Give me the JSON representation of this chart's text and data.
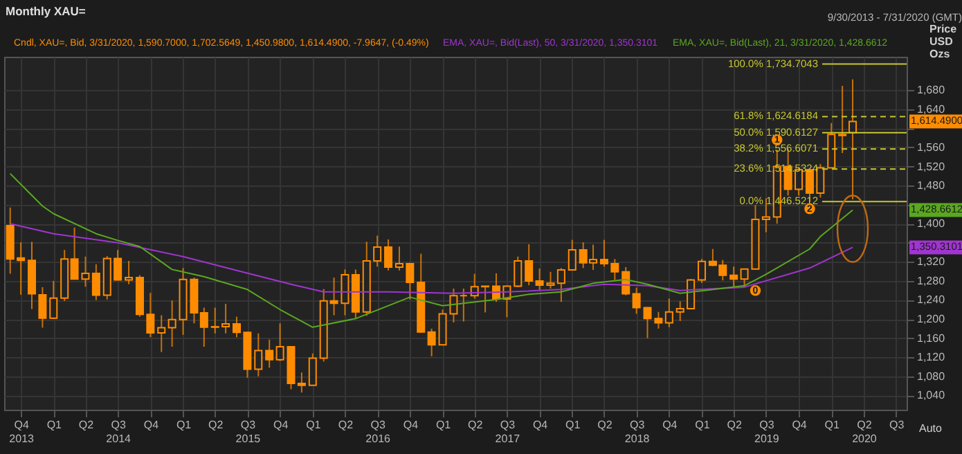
{
  "chart_data": {
    "type": "candlestick",
    "title": "Monthly XAU=",
    "subtitle": "9/30/2013 - 7/31/2020 (GMT)",
    "ylabel": "Price USD Ozs",
    "x": [
      "2013-09",
      "2013-10",
      "2013-11",
      "2013-12",
      "2014-01",
      "2014-02",
      "2014-03",
      "2014-04",
      "2014-05",
      "2014-06",
      "2014-07",
      "2014-08",
      "2014-09",
      "2014-10",
      "2014-11",
      "2014-12",
      "2015-01",
      "2015-02",
      "2015-03",
      "2015-04",
      "2015-05",
      "2015-06",
      "2015-07",
      "2015-08",
      "2015-09",
      "2015-10",
      "2015-11",
      "2015-12",
      "2016-01",
      "2016-02",
      "2016-03",
      "2016-04",
      "2016-05",
      "2016-06",
      "2016-07",
      "2016-08",
      "2016-09",
      "2016-10",
      "2016-11",
      "2016-12",
      "2017-01",
      "2017-02",
      "2017-03",
      "2017-04",
      "2017-05",
      "2017-06",
      "2017-07",
      "2017-08",
      "2017-09",
      "2017-10",
      "2017-11",
      "2017-12",
      "2018-01",
      "2018-02",
      "2018-03",
      "2018-04",
      "2018-05",
      "2018-06",
      "2018-07",
      "2018-08",
      "2018-09",
      "2018-10",
      "2018-11",
      "2018-12",
      "2019-01",
      "2019-02",
      "2019-03",
      "2019-04",
      "2019-05",
      "2019-06",
      "2019-07",
      "2019-08",
      "2019-09",
      "2019-10",
      "2019-11",
      "2019-12",
      "2020-01",
      "2020-02",
      "2020-03"
    ],
    "series": [
      {
        "name": "Cndl, XAU=, Bid, 3/31/2020, 1,590.7000, 1,702.5649, 1,450.9800, 1,614.4900, -7.9647, (-0.49%)",
        "color": "#ff8c00",
        "ohlc": [
          [
            1396,
            1434,
            1295,
            1326
          ],
          [
            1328,
            1361,
            1251,
            1323
          ],
          [
            1323,
            1362,
            1221,
            1253
          ],
          [
            1251,
            1267,
            1182,
            1202
          ],
          [
            1202,
            1280,
            1200,
            1244
          ],
          [
            1244,
            1345,
            1238,
            1326
          ],
          [
            1326,
            1392,
            1284,
            1284
          ],
          [
            1284,
            1331,
            1268,
            1296
          ],
          [
            1296,
            1315,
            1240,
            1250
          ],
          [
            1250,
            1332,
            1241,
            1327
          ],
          [
            1327,
            1345,
            1281,
            1282
          ],
          [
            1282,
            1322,
            1273,
            1287
          ],
          [
            1287,
            1292,
            1205,
            1210
          ],
          [
            1210,
            1255,
            1162,
            1171
          ],
          [
            1171,
            1208,
            1131,
            1182
          ],
          [
            1182,
            1239,
            1142,
            1199
          ],
          [
            1199,
            1307,
            1167,
            1283
          ],
          [
            1283,
            1287,
            1191,
            1213
          ],
          [
            1213,
            1224,
            1142,
            1183
          ],
          [
            1183,
            1224,
            1170,
            1184
          ],
          [
            1184,
            1232,
            1170,
            1190
          ],
          [
            1190,
            1205,
            1162,
            1172
          ],
          [
            1172,
            1174,
            1077,
            1095
          ],
          [
            1095,
            1170,
            1080,
            1134
          ],
          [
            1134,
            1157,
            1098,
            1115
          ],
          [
            1115,
            1191,
            1112,
            1142
          ],
          [
            1142,
            1143,
            1053,
            1065
          ],
          [
            1065,
            1088,
            1046,
            1061
          ],
          [
            1061,
            1128,
            1061,
            1118
          ],
          [
            1118,
            1263,
            1111,
            1238
          ],
          [
            1238,
            1287,
            1208,
            1233
          ],
          [
            1233,
            1304,
            1208,
            1293
          ],
          [
            1293,
            1304,
            1200,
            1215
          ],
          [
            1215,
            1362,
            1207,
            1322
          ],
          [
            1322,
            1375,
            1310,
            1351
          ],
          [
            1351,
            1367,
            1302,
            1309
          ],
          [
            1309,
            1352,
            1302,
            1316
          ],
          [
            1316,
            1318,
            1241,
            1277
          ],
          [
            1277,
            1337,
            1171,
            1173
          ],
          [
            1173,
            1180,
            1122,
            1146
          ],
          [
            1146,
            1220,
            1146,
            1211
          ],
          [
            1211,
            1264,
            1193,
            1249
          ],
          [
            1249,
            1264,
            1195,
            1249
          ],
          [
            1249,
            1295,
            1243,
            1268
          ],
          [
            1268,
            1269,
            1214,
            1269
          ],
          [
            1269,
            1296,
            1236,
            1242
          ],
          [
            1242,
            1270,
            1204,
            1269
          ],
          [
            1269,
            1331,
            1267,
            1322
          ],
          [
            1322,
            1357,
            1271,
            1280
          ],
          [
            1280,
            1306,
            1261,
            1271
          ],
          [
            1271,
            1299,
            1264,
            1275
          ],
          [
            1275,
            1307,
            1236,
            1303
          ],
          [
            1303,
            1366,
            1302,
            1345
          ],
          [
            1345,
            1361,
            1307,
            1318
          ],
          [
            1318,
            1356,
            1303,
            1325
          ],
          [
            1325,
            1366,
            1310,
            1316
          ],
          [
            1316,
            1326,
            1282,
            1299
          ],
          [
            1299,
            1309,
            1250,
            1253
          ],
          [
            1253,
            1266,
            1211,
            1224
          ],
          [
            1224,
            1225,
            1160,
            1201
          ],
          [
            1201,
            1215,
            1180,
            1192
          ],
          [
            1192,
            1243,
            1183,
            1215
          ],
          [
            1215,
            1237,
            1196,
            1222
          ],
          [
            1222,
            1284,
            1221,
            1282
          ],
          [
            1282,
            1326,
            1276,
            1321
          ],
          [
            1321,
            1347,
            1311,
            1313
          ],
          [
            1313,
            1324,
            1281,
            1292
          ],
          [
            1292,
            1310,
            1266,
            1284
          ],
          [
            1284,
            1306,
            1267,
            1305
          ],
          [
            1305,
            1439,
            1304,
            1409
          ],
          [
            1409,
            1453,
            1382,
            1414
          ],
          [
            1414,
            1555,
            1400,
            1520
          ],
          [
            1520,
            1557,
            1459,
            1472
          ],
          [
            1472,
            1518,
            1459,
            1513
          ],
          [
            1513,
            1516,
            1445,
            1464
          ],
          [
            1464,
            1525,
            1455,
            1517
          ],
          [
            1517,
            1611,
            1517,
            1587
          ],
          [
            1587,
            1689,
            1548,
            1585
          ],
          [
            1590.7,
            1702.5649,
            1450.98,
            1614.49
          ]
        ]
      },
      {
        "type": "line",
        "name": "EMA, XAU=, Bid(Last), 50, 3/31/2020, 1,350.3101",
        "color": "#a035d0",
        "x": [
          "2013-09",
          "2014-01",
          "2014-07",
          "2015-01",
          "2015-06",
          "2015-11",
          "2016-02",
          "2016-08",
          "2017-02",
          "2017-07",
          "2017-12",
          "2018-04",
          "2018-08",
          "2018-11",
          "2019-05",
          "2019-11",
          "2020-03"
        ],
        "values": [
          1400,
          1379,
          1360,
          1331,
          1302,
          1273,
          1257,
          1257,
          1254,
          1257,
          1262,
          1273,
          1270,
          1260,
          1267,
          1307,
          1350.3101
        ]
      },
      {
        "type": "line",
        "name": "EMA, XAU=, Bid(Last), 21, 3/31/2020, 1,428.6612",
        "color": "#5aa820",
        "x": [
          "2013-09",
          "2013-12",
          "2014-01",
          "2014-05",
          "2014-07",
          "2014-09",
          "2014-12",
          "2015-03",
          "2015-07",
          "2015-10",
          "2016-01",
          "2016-05",
          "2016-10",
          "2017-01",
          "2017-06",
          "2017-09",
          "2017-12",
          "2018-03",
          "2018-06",
          "2018-08",
          "2018-11",
          "2019-05",
          "2019-07",
          "2019-11",
          "2019-12",
          "2020-03"
        ],
        "values": [
          1505,
          1437,
          1421,
          1379,
          1365,
          1352,
          1304,
          1289,
          1262,
          1220,
          1183,
          1201,
          1246,
          1228,
          1241,
          1252,
          1257,
          1275,
          1283,
          1273,
          1254,
          1270,
          1294,
          1347,
          1373,
          1428.6612
        ]
      }
    ],
    "xlim": [
      "2013-08-15",
      "2020-07-31"
    ],
    "xticks": [
      {
        "value": "2013-10",
        "label": "Q4\n2013"
      },
      {
        "value": "2014-01",
        "label": "Q1"
      },
      {
        "value": "2014-04",
        "label": "Q2"
      },
      {
        "value": "2014-07",
        "label": "Q3\n2014"
      },
      {
        "value": "2014-10",
        "label": "Q4"
      },
      {
        "value": "2015-01",
        "label": "Q1"
      },
      {
        "value": "2015-04",
        "label": "Q2"
      },
      {
        "value": "2015-07",
        "label": "Q3\n2015"
      },
      {
        "value": "2015-10",
        "label": "Q4"
      },
      {
        "value": "2016-01",
        "label": "Q1"
      },
      {
        "value": "2016-04",
        "label": "Q2"
      },
      {
        "value": "2016-07",
        "label": "Q3\n2016"
      },
      {
        "value": "2016-10",
        "label": "Q4"
      },
      {
        "value": "2017-01",
        "label": "Q1"
      },
      {
        "value": "2017-04",
        "label": "Q2"
      },
      {
        "value": "2017-07",
        "label": "Q3\n2017"
      },
      {
        "value": "2017-10",
        "label": "Q4"
      },
      {
        "value": "2018-01",
        "label": "Q1"
      },
      {
        "value": "2018-04",
        "label": "Q2"
      },
      {
        "value": "2018-07",
        "label": "Q3\n2018"
      },
      {
        "value": "2018-10",
        "label": "Q4"
      },
      {
        "value": "2019-01",
        "label": "Q1"
      },
      {
        "value": "2019-04",
        "label": "Q2"
      },
      {
        "value": "2019-07",
        "label": "Q3\n2019"
      },
      {
        "value": "2019-10",
        "label": "Q4"
      },
      {
        "value": "2020-01",
        "label": "Q1"
      },
      {
        "value": "2020-04",
        "label": "Q2\n2020"
      },
      {
        "value": "2020-07",
        "label": "Q3"
      }
    ],
    "ylim": [
      1010,
      1750
    ],
    "yticks": [
      {
        "value": 1040,
        "label": "1,040"
      },
      {
        "value": 1080,
        "label": "1,080"
      },
      {
        "value": 1120,
        "label": "1,120"
      },
      {
        "value": 1160,
        "label": "1,160"
      },
      {
        "value": 1200,
        "label": "1,200"
      },
      {
        "value": 1240,
        "label": "1,240"
      },
      {
        "value": 1280,
        "label": "1,280"
      },
      {
        "value": 1320,
        "label": "1,320"
      },
      {
        "value": 1360,
        "label": null
      },
      {
        "value": 1400,
        "label": "1,400"
      },
      {
        "value": 1440,
        "label": null
      },
      {
        "value": 1480,
        "label": "1,480"
      },
      {
        "value": 1520,
        "label": "1,520"
      },
      {
        "value": 1560,
        "label": "1,560"
      },
      {
        "value": 1600,
        "label": null
      },
      {
        "value": 1640,
        "label": "1,640"
      },
      {
        "value": 1680,
        "label": "1,680"
      }
    ],
    "ref_lines": [
      {
        "axis": "y",
        "value": 1734.7043,
        "label": "100.0% 1,734.7043",
        "color": "#c8c830",
        "line_style": "solid"
      },
      {
        "axis": "y",
        "value": 1624.6184,
        "label": "61.8% 1,624.6184",
        "color": "#c8c830",
        "line_style": "dashed"
      },
      {
        "axis": "y",
        "value": 1590.6127,
        "label": "50.0% 1,590.6127",
        "color": "#c8c830",
        "line_style": "solid"
      },
      {
        "axis": "y",
        "value": 1556.6071,
        "label": "38.2% 1,556.6071",
        "color": "#c8c830",
        "line_style": "dashed"
      },
      {
        "axis": "y",
        "value": 1514.5324,
        "label": "23.6% 1,514.5324",
        "color": "#c8c830",
        "line_style": "dashed"
      },
      {
        "axis": "y",
        "value": 1446.5212,
        "label": "0.0% 1,446.5212",
        "color": "#c8c830",
        "line_style": "solid"
      }
    ],
    "annotations": [
      "1,614.4900",
      "1,350.3101",
      "1,428.6612",
      {
        "text": "0",
        "x": "2019-06",
        "y": 1260
      },
      {
        "text": "1",
        "x": "2019-08",
        "y": 1576
      },
      {
        "text": "2",
        "x": "2019-11",
        "y": 1431
      },
      "Auto"
    ],
    "grid": true,
    "legend": "top left"
  }
}
